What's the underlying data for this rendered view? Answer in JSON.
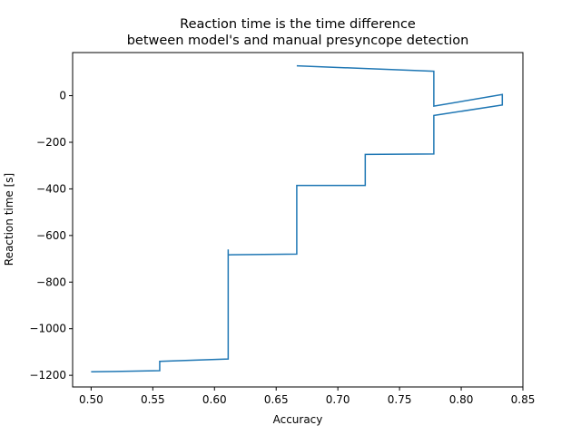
{
  "chart_data": {
    "type": "line",
    "title_lines": [
      "Reaction time is the time difference",
      "between model's and manual presyncope detection"
    ],
    "xlabel": "Accuracy",
    "ylabel": "Reaction time [s]",
    "xlim": [
      0.485,
      0.85
    ],
    "ylim": [
      -1250,
      185
    ],
    "x_ticks": [
      0.5,
      0.55,
      0.6,
      0.65,
      0.7,
      0.75,
      0.8,
      0.85
    ],
    "x_tick_labels": [
      "0.50",
      "0.55",
      "0.60",
      "0.65",
      "0.70",
      "0.75",
      "0.80",
      "0.85"
    ],
    "y_ticks": [
      -1200,
      -1000,
      -800,
      -600,
      -400,
      -200,
      0
    ],
    "y_tick_labels": [
      "−1200",
      "−1000",
      "−800",
      "−600",
      "−400",
      "−200",
      "0"
    ],
    "grid": false,
    "series": [
      {
        "color": "#1f77b4",
        "x": [
          0.5,
          0.5556,
          0.5556,
          0.6111,
          0.6111,
          0.6111,
          0.6111,
          0.6667,
          0.6667,
          0.7222,
          0.7222,
          0.7778,
          0.7778,
          0.8333,
          0.8333,
          0.7778,
          0.7778,
          0.6667
        ],
        "y": [
          -1185,
          -1180,
          -1140,
          -1130,
          -735,
          -660,
          -683,
          -680,
          -385,
          -385,
          -252,
          -250,
          -85,
          -40,
          5,
          -45,
          105,
          128
        ]
      }
    ]
  }
}
